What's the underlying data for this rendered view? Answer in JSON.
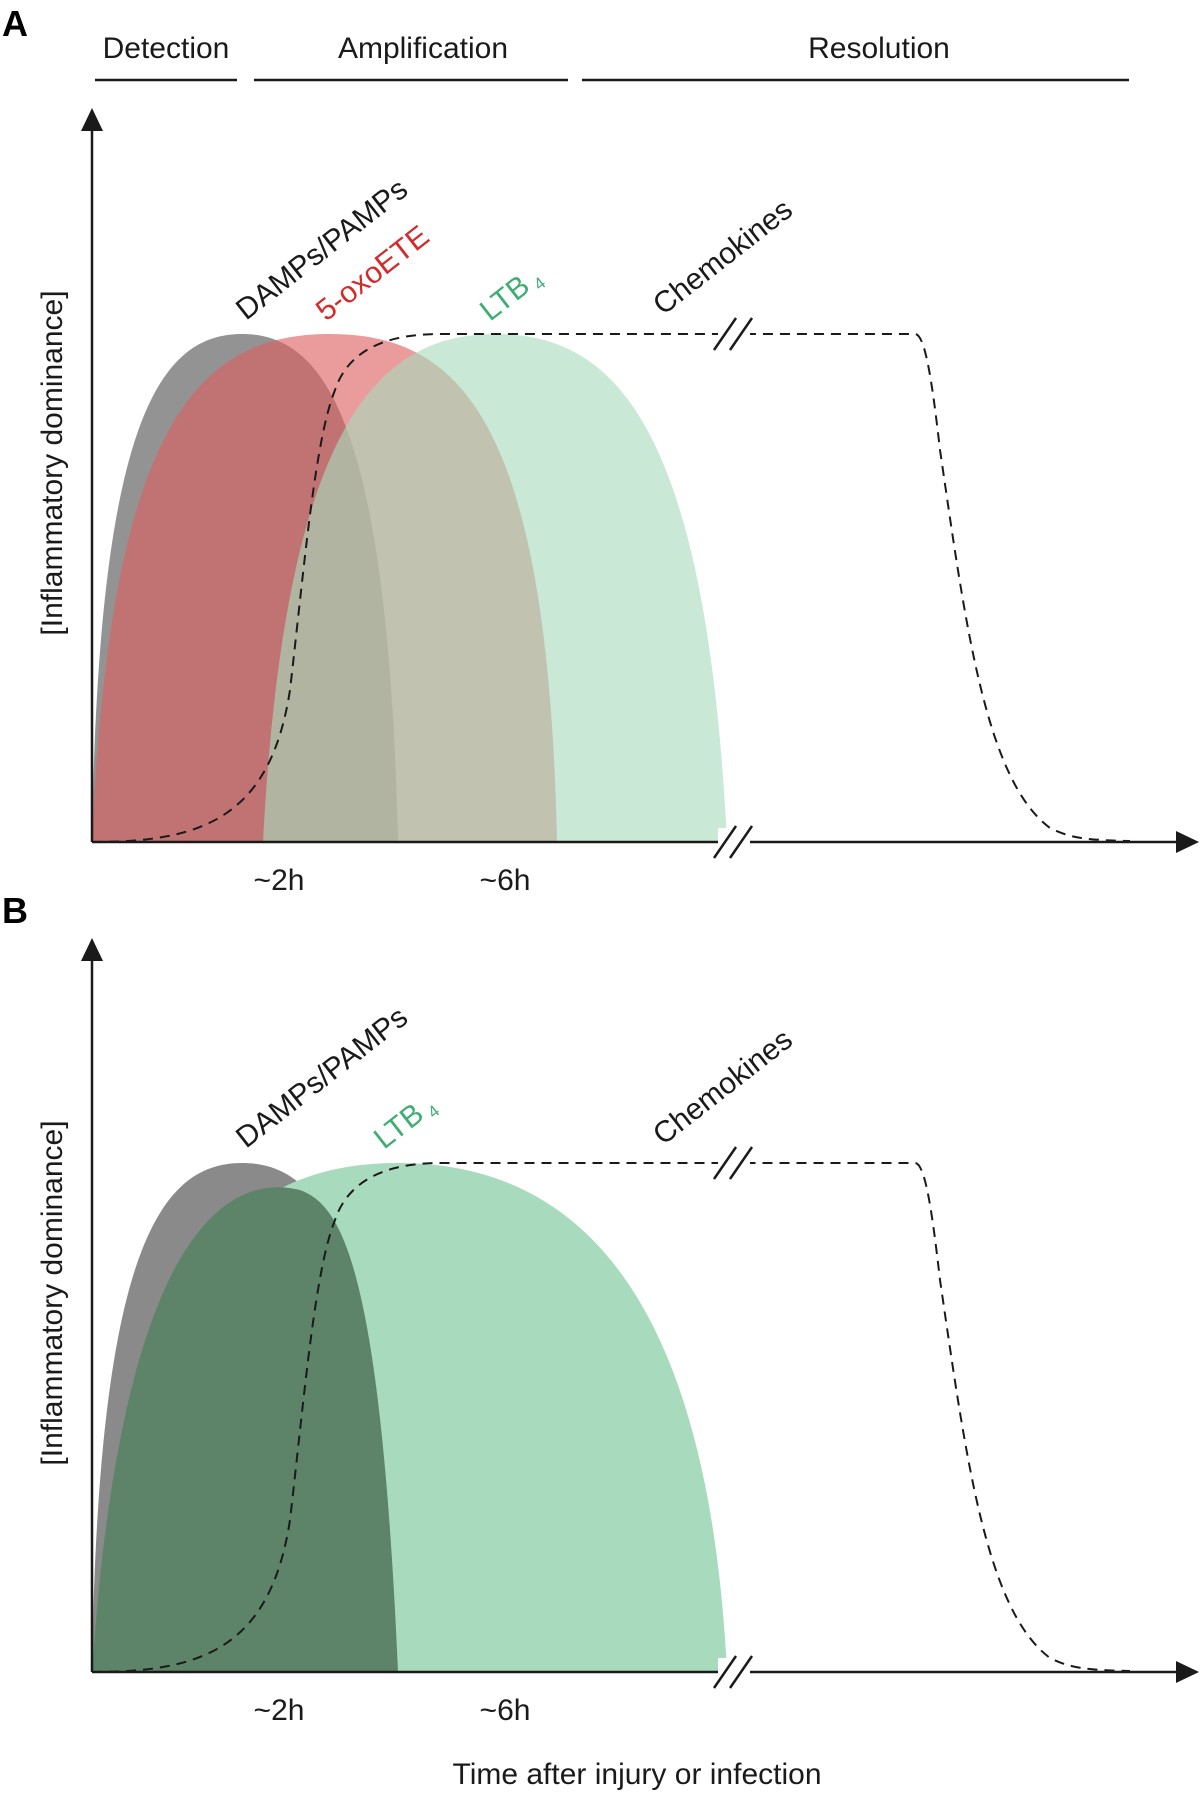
{
  "panel_a": {
    "letter": "A",
    "phases": {
      "detection": "Detection",
      "amplification": "Amplification",
      "resolution": "Resolution"
    },
    "y_axis_label": "[Inflammatory dominance]",
    "curve_labels": {
      "damps": "DAMPs/PAMPs",
      "oxoete": "5-oxoETE",
      "ltb4_main": "LTB",
      "ltb4_sub": "4",
      "chemokines": "Chemokines"
    },
    "ticks": {
      "t2h": "~2h",
      "t6h": "~6h"
    }
  },
  "panel_b": {
    "letter": "B",
    "y_axis_label": "[Inflammatory dominance]",
    "curve_labels": {
      "damps": "DAMPs/PAMPs",
      "ltb4_main": "LTB",
      "ltb4_sub": "4",
      "chemokines": "Chemokines"
    },
    "ticks": {
      "t2h": "~2h",
      "t6h": "~6h"
    }
  },
  "x_axis_label": "Time after injury or infection",
  "colors": {
    "damps_fill": "#8a8a8a",
    "oxoete_fill": "#e56f6f",
    "oxoete_label": "#d42a2a",
    "ltb4_fill": "#a8dbbd",
    "ltb4_label": "#3fae74",
    "overlap_b": "#5d8468",
    "chemokine_dash": "#1a1a1a"
  }
}
